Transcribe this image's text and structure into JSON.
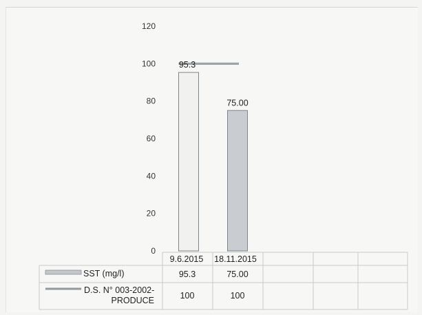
{
  "chart_data": {
    "type": "bar",
    "title": "",
    "xlabel": "",
    "ylabel": "",
    "ylim": [
      0,
      120
    ],
    "yticks": [
      0,
      20,
      40,
      60,
      80,
      100,
      120
    ],
    "categories": [
      "9.6.2015",
      "18.11.2015"
    ],
    "series": [
      {
        "name": "SST (mg/l)",
        "kind": "bar",
        "values": [
          95.3,
          75.0
        ],
        "labels": [
          "95.3",
          "75.00"
        ],
        "colors": [
          "#f1f1ef",
          "#c9ccd1"
        ]
      },
      {
        "name": "D.S. N° 003-2002-PRODUCE",
        "kind": "line",
        "values": [
          100,
          100
        ],
        "labels": [
          "100",
          "100"
        ],
        "color": "#8f9a9e"
      }
    ],
    "grid": false,
    "legend": "data-table-below"
  }
}
